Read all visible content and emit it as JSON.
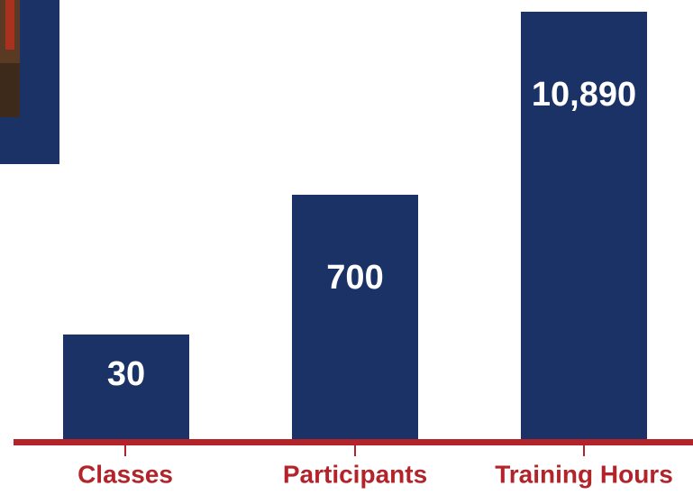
{
  "items": [
    {
      "label": "Classes",
      "value": "30"
    },
    {
      "label": "Participants",
      "value": "700"
    },
    {
      "label": "Training Hours",
      "value": "10,890"
    }
  ]
}
